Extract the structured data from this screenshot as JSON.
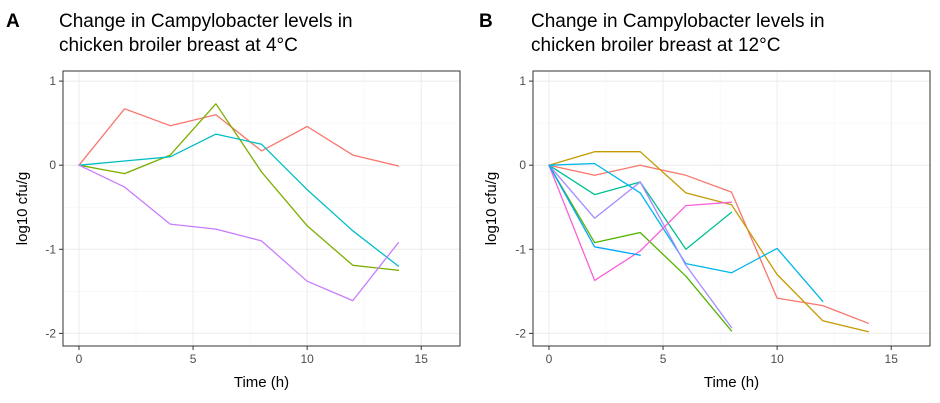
{
  "chart_data": [
    {
      "type": "line",
      "panel_label": "A",
      "title_line1": "Change in Campylobacter levels in",
      "title_line2": "chicken broiler breast at 4°C",
      "xlabel": "Time (h)",
      "ylabel": "log10 cfu/g",
      "xlim": [
        -0.7,
        16.7
      ],
      "ylim": [
        -2.15,
        1.12
      ],
      "x_ticks": [
        0,
        5,
        10,
        15
      ],
      "y_ticks": [
        -2,
        -1,
        0,
        1
      ],
      "grid": true,
      "series": [
        {
          "color": "#F8766D",
          "x": [
            0,
            2,
            4,
            6,
            8,
            10,
            12,
            14
          ],
          "y": [
            0,
            0.67,
            0.47,
            0.6,
            0.17,
            0.46,
            0.12,
            -0.01
          ]
        },
        {
          "color": "#7CAE00",
          "x": [
            0,
            2,
            4,
            6,
            8,
            10,
            12,
            14
          ],
          "y": [
            0,
            -0.1,
            0.12,
            0.73,
            -0.08,
            -0.72,
            -1.19,
            -1.25
          ]
        },
        {
          "color": "#00BFC4",
          "x": [
            0,
            2,
            4,
            6,
            8,
            10,
            12,
            14
          ],
          "y": [
            0,
            0.05,
            0.1,
            0.37,
            0.25,
            -0.29,
            -0.78,
            -1.2
          ]
        },
        {
          "color": "#C77CFF",
          "x": [
            0,
            2,
            4,
            6,
            8,
            10,
            12,
            14
          ],
          "y": [
            0,
            -0.26,
            -0.7,
            -0.76,
            -0.9,
            -1.38,
            -1.61,
            -0.92
          ]
        }
      ]
    },
    {
      "type": "line",
      "panel_label": "B",
      "title_line1": "Change in Campylobacter levels in",
      "title_line2": "chicken broiler breast at 12°C",
      "xlabel": "Time (h)",
      "ylabel": "log10 cfu/g",
      "xlim": [
        -0.7,
        16.7
      ],
      "ylim": [
        -2.15,
        1.12
      ],
      "x_ticks": [
        0,
        5,
        10,
        15
      ],
      "y_ticks": [
        -2,
        -1,
        0,
        1
      ],
      "grid": true,
      "series": [
        {
          "color": "#F8766D",
          "x": [
            0,
            2,
            4,
            6,
            8,
            10,
            12,
            14
          ],
          "y": [
            0,
            -0.12,
            0.0,
            -0.12,
            -0.32,
            -1.58,
            -1.67,
            -1.88
          ]
        },
        {
          "color": "#C49A00",
          "x": [
            0,
            2,
            4,
            6,
            8,
            10,
            12,
            14
          ],
          "y": [
            0,
            0.16,
            0.16,
            -0.33,
            -0.47,
            -1.3,
            -1.85,
            -1.98
          ]
        },
        {
          "color": "#53B400",
          "x": [
            0,
            2,
            4,
            6,
            8
          ],
          "y": [
            0,
            -0.92,
            -0.8,
            -1.32,
            -1.97
          ]
        },
        {
          "color": "#00C094",
          "x": [
            0,
            2,
            4,
            6,
            8
          ],
          "y": [
            0,
            -0.35,
            -0.2,
            -1.0,
            -0.56
          ]
        },
        {
          "color": "#00B6EB",
          "x": [
            0,
            2,
            4,
            6,
            8,
            10,
            12
          ],
          "y": [
            0,
            0.02,
            -0.33,
            -1.17,
            -1.28,
            -0.99,
            -1.62
          ]
        },
        {
          "color": "#A58AFF",
          "x": [
            0,
            2,
            4,
            6,
            8
          ],
          "y": [
            0,
            -0.63,
            -0.2,
            -1.19,
            -1.93
          ]
        },
        {
          "color": "#FB61D7",
          "x": [
            0,
            2,
            4,
            6,
            8
          ],
          "y": [
            0,
            -1.37,
            -1.02,
            -0.48,
            -0.44
          ]
        },
        {
          "color": "#00A9FF",
          "x": [
            0,
            2,
            4
          ],
          "y": [
            0,
            -0.97,
            -1.07
          ]
        }
      ]
    }
  ]
}
